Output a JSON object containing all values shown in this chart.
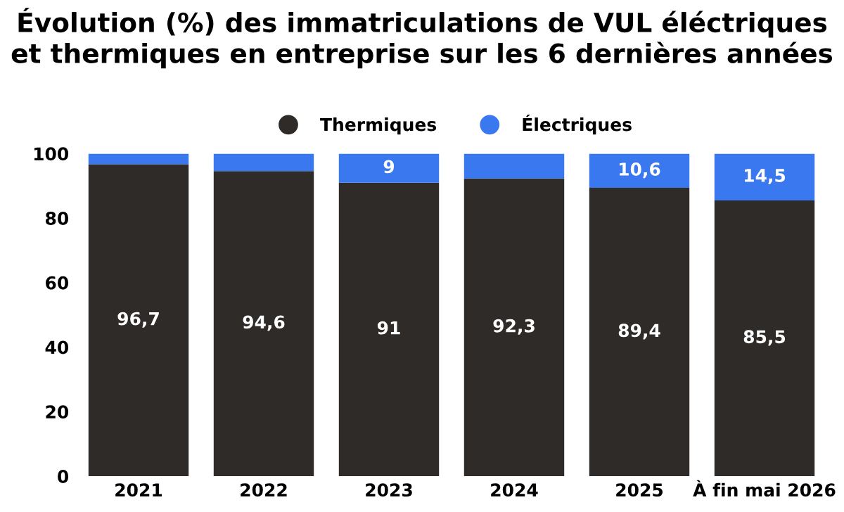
{
  "chart_data": {
    "type": "bar",
    "title": "Évolution (%) des immatriculations de VUL éléctriques\net thermiques en entreprise sur les 6 dernières années",
    "categories": [
      "2021",
      "2022",
      "2023",
      "2024",
      "2025",
      "À fin mai 2026"
    ],
    "stacked": true,
    "series": [
      {
        "name": "Thermiques",
        "color": "#2e2b29",
        "values": [
          96.7,
          94.6,
          91,
          92.3,
          89.4,
          85.5
        ],
        "value_labels": [
          "96,7",
          "94,6",
          "91",
          "92,3",
          "89,4",
          "85,5"
        ]
      },
      {
        "name": "Électriques",
        "color": "#3a78f0",
        "values": [
          3.3,
          5.4,
          9,
          7.7,
          10.6,
          14.5
        ],
        "value_labels": [
          null,
          null,
          "9",
          null,
          "10,6",
          "14,5"
        ]
      }
    ],
    "ylim": [
      0,
      100
    ],
    "yticks": [
      0,
      20,
      40,
      60,
      80,
      100
    ],
    "grid": false,
    "legend": "top"
  }
}
